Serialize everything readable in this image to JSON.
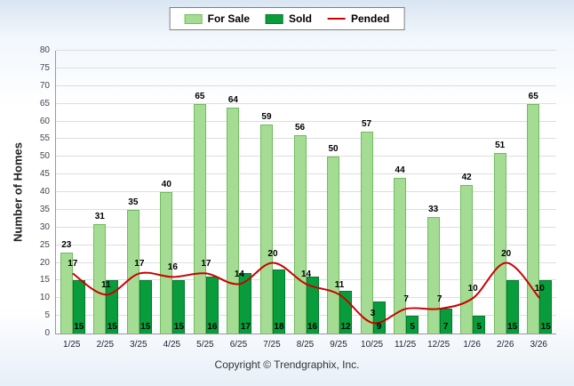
{
  "legend": {
    "for_sale_label": "For Sale",
    "sold_label": "Sold",
    "pended_label": "Pended"
  },
  "footer_text": "Copyright © Trendgraphix, Inc.",
  "colors": {
    "for_sale": "#A5DC93",
    "for_sale_border": "#71BB60",
    "sold": "#089C3C",
    "sold_border": "#067A2E",
    "pended": "#CC0000",
    "grid": "#DEDEDE"
  },
  "chart_data": {
    "type": "bar",
    "categories": [
      "1/25",
      "2/25",
      "3/25",
      "4/25",
      "5/25",
      "6/25",
      "7/25",
      "8/25",
      "9/25",
      "10/25",
      "11/25",
      "12/25",
      "1/26",
      "2/26",
      "3/26"
    ],
    "series": [
      {
        "name": "For Sale",
        "type": "bar",
        "values": [
          23,
          31,
          35,
          40,
          65,
          64,
          59,
          56,
          50,
          57,
          44,
          33,
          42,
          51,
          65
        ]
      },
      {
        "name": "Sold",
        "type": "bar",
        "values": [
          15,
          15,
          15,
          15,
          16,
          17,
          18,
          16,
          12,
          9,
          5,
          7,
          5,
          15,
          15
        ]
      },
      {
        "name": "Pended",
        "type": "line",
        "values": [
          17,
          11,
          17,
          16,
          17,
          14,
          20,
          14,
          11,
          3,
          7,
          7,
          10,
          20,
          10
        ]
      }
    ],
    "title": "",
    "xlabel": "",
    "ylabel": "Number of Homes",
    "ylim": [
      0,
      80
    ],
    "ytick_step": 5,
    "grid": true,
    "legend_position": "top-center"
  }
}
